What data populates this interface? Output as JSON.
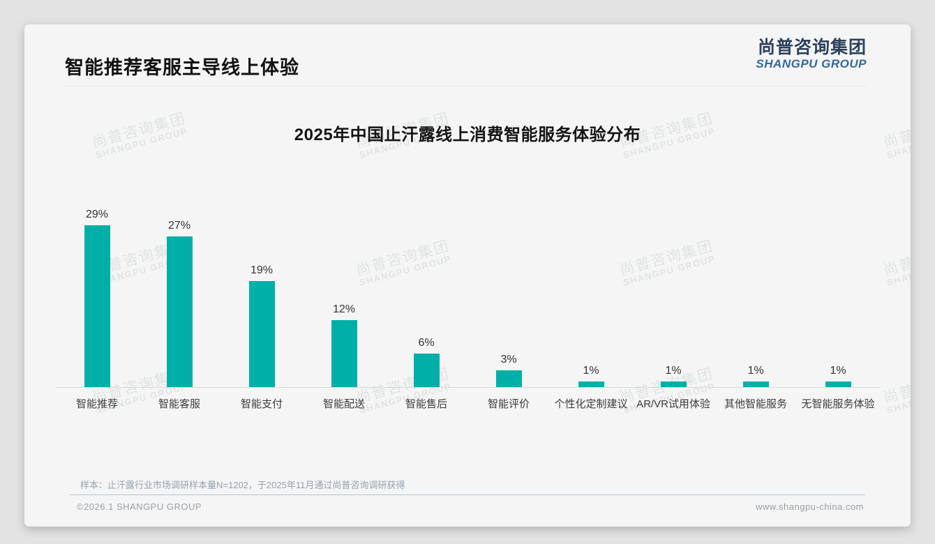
{
  "page": {
    "title": "智能推荐客服主导线上体验",
    "logo": {
      "cn": "尚普咨询集团",
      "en": "SHANGPU GROUP"
    },
    "watermark": {
      "cn": "尚普咨询集团",
      "en": "SHANGPU GROUP"
    },
    "footnote": "样本：止汗露行业市场调研样本量N=1202，于2025年11月通过尚普咨询调研获得",
    "footer_left": "©2026.1 SHANGPU GROUP",
    "footer_right": "www.shangpu-china.com"
  },
  "colors": {
    "bar": "#00B0A8",
    "logo_cn": "#2C415C",
    "logo_en": "#33689E",
    "card_bg": "#F5F5F6",
    "page_bg": "#E3E3E3",
    "axis_line": "#D9D9D9"
  },
  "chart_data": {
    "type": "bar",
    "title": "2025年中国止汗露线上消费智能服务体验分布",
    "categories": [
      "智能推荐",
      "智能客服",
      "智能支付",
      "智能配送",
      "智能售后",
      "智能评价",
      "个性化定制建议",
      "AR/VR试用体验",
      "其他智能服务",
      "无智能服务体验"
    ],
    "values": [
      29,
      27,
      19,
      12,
      6,
      3,
      1,
      1,
      1,
      1
    ],
    "labels": [
      "29%",
      "27%",
      "19%",
      "12%",
      "6%",
      "3%",
      "1%",
      "1%",
      "1%",
      "1%"
    ],
    "unit": "%",
    "xlabel": "",
    "ylabel": "",
    "ylim": [
      0,
      32
    ],
    "grid": false,
    "legend": null,
    "bar_color": "#00B0A8"
  }
}
